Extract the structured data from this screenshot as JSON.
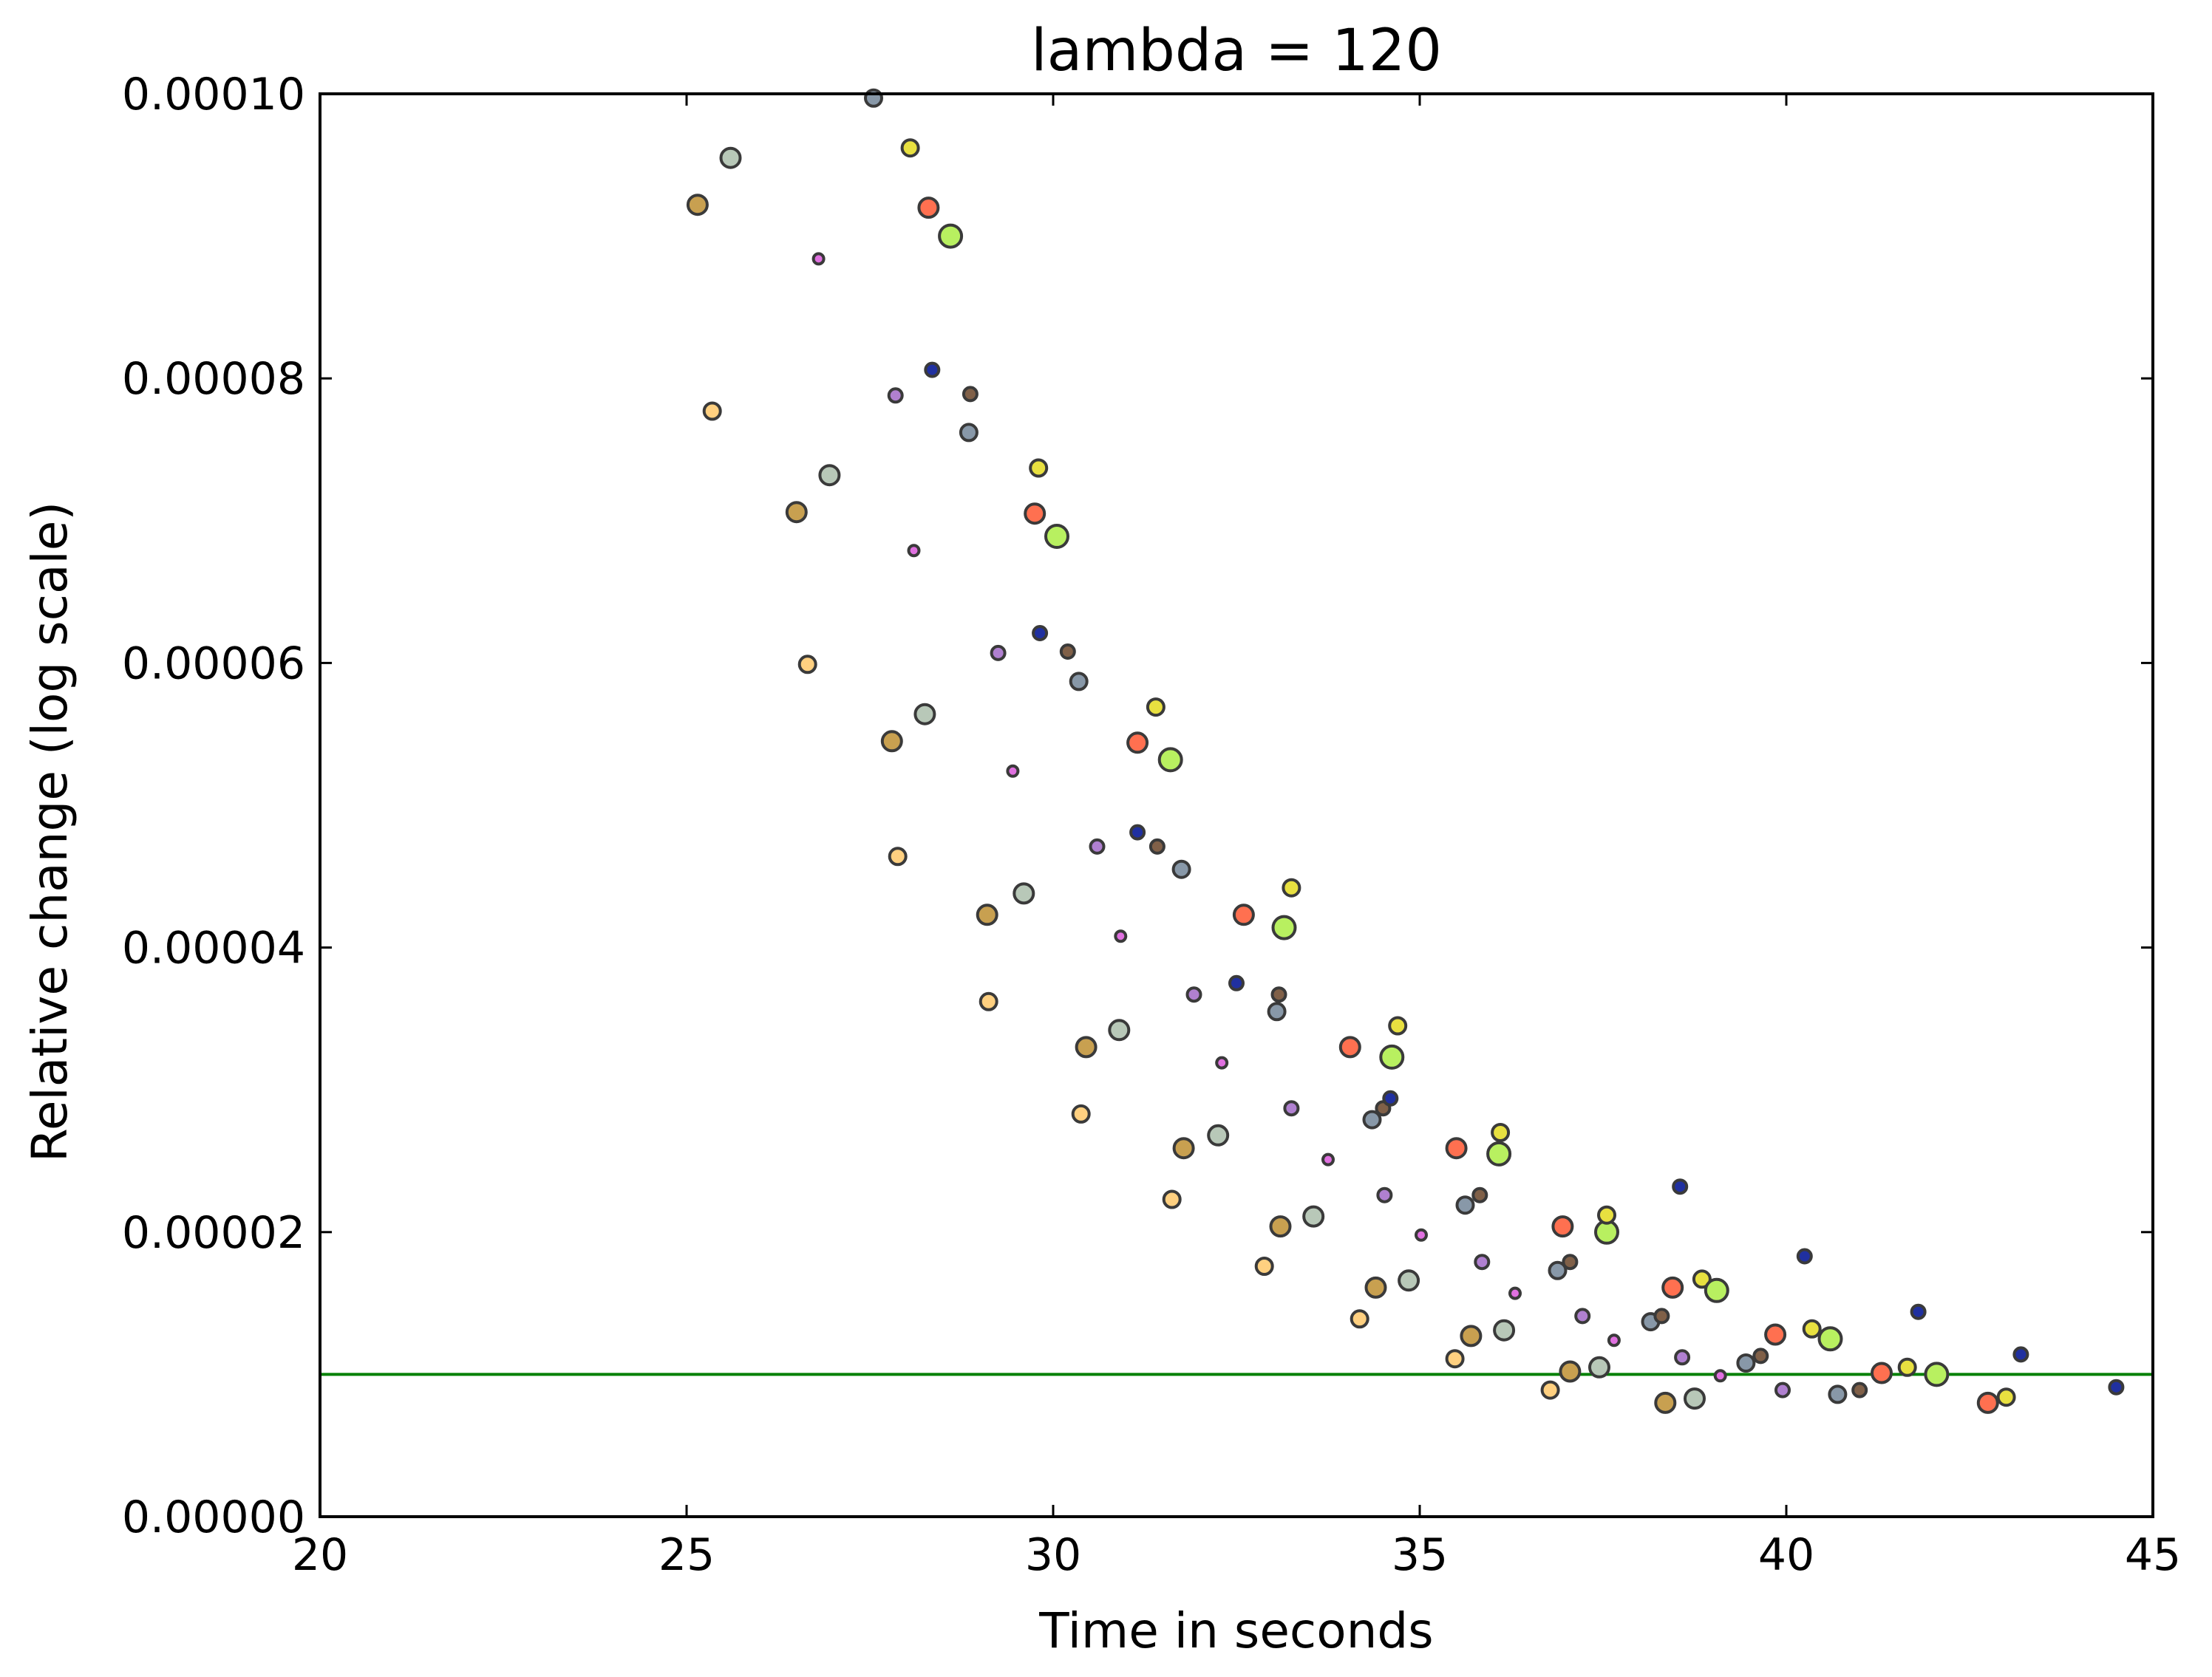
{
  "chart_data": {
    "type": "scatter",
    "title": "lambda = 120",
    "xlabel": "Time in seconds",
    "ylabel": "Relative change (log scale)",
    "xlim": [
      20,
      45
    ],
    "ylim": [
      0,
      0.0001
    ],
    "x_ticks": [
      "20",
      "25",
      "30",
      "35",
      "40",
      "45"
    ],
    "y_ticks": [
      "0.00000",
      "0.00002",
      "0.00004",
      "0.00006",
      "0.00008",
      "0.00010"
    ],
    "grid": false,
    "threshold_line": {
      "y": 1e-05,
      "color": "#008000"
    },
    "marker_edge_color": "#3a3a3a",
    "palette": {
      "tan": "#c8a050",
      "silver": "#b8c8b8",
      "light-orange": "#ffd080",
      "pink": "#e070e0",
      "grey-blue": "#8898a8",
      "yellow": "#e8e040",
      "salmon": "#ff7050",
      "lime": "#b8f060",
      "navy": "#2030a0",
      "lavender": "#b080d0",
      "brown": "#806048"
    },
    "points": [
      {
        "x": 25.15,
        "y": 9.22e-05,
        "color": "tan",
        "size": "large"
      },
      {
        "x": 25.35,
        "y": 7.77e-05,
        "color": "light-orange",
        "size": "medium"
      },
      {
        "x": 25.6,
        "y": 9.55e-05,
        "color": "silver",
        "size": "large"
      },
      {
        "x": 26.5,
        "y": 7.06e-05,
        "color": "tan",
        "size": "large"
      },
      {
        "x": 26.65,
        "y": 5.99e-05,
        "color": "light-orange",
        "size": "medium"
      },
      {
        "x": 26.8,
        "y": 8.84e-05,
        "color": "pink",
        "size": "tiny"
      },
      {
        "x": 26.95,
        "y": 7.32e-05,
        "color": "silver",
        "size": "large"
      },
      {
        "x": 27.55,
        "y": 9.97e-05,
        "color": "grey-blue",
        "size": "medium"
      },
      {
        "x": 27.8,
        "y": 5.45e-05,
        "color": "tan",
        "size": "large"
      },
      {
        "x": 27.85,
        "y": 7.88e-05,
        "color": "lavender",
        "size": "small"
      },
      {
        "x": 27.88,
        "y": 4.64e-05,
        "color": "light-orange",
        "size": "medium"
      },
      {
        "x": 28.05,
        "y": 9.62e-05,
        "color": "yellow",
        "size": "medium"
      },
      {
        "x": 28.1,
        "y": 6.79e-05,
        "color": "pink",
        "size": "tiny"
      },
      {
        "x": 28.25,
        "y": 5.64e-05,
        "color": "silver",
        "size": "large"
      },
      {
        "x": 28.3,
        "y": 9.2e-05,
        "color": "salmon",
        "size": "large"
      },
      {
        "x": 28.35,
        "y": 8.06e-05,
        "color": "navy",
        "size": "small"
      },
      {
        "x": 28.6,
        "y": 9e-05,
        "color": "lime",
        "size": "xlarge"
      },
      {
        "x": 28.85,
        "y": 7.62e-05,
        "color": "grey-blue",
        "size": "medium"
      },
      {
        "x": 28.87,
        "y": 7.89e-05,
        "color": "brown",
        "size": "small"
      },
      {
        "x": 29.1,
        "y": 4.23e-05,
        "color": "tan",
        "size": "large"
      },
      {
        "x": 29.12,
        "y": 3.62e-05,
        "color": "light-orange",
        "size": "medium"
      },
      {
        "x": 29.25,
        "y": 6.07e-05,
        "color": "lavender",
        "size": "small"
      },
      {
        "x": 29.45,
        "y": 5.24e-05,
        "color": "pink",
        "size": "tiny"
      },
      {
        "x": 29.6,
        "y": 4.38e-05,
        "color": "silver",
        "size": "large"
      },
      {
        "x": 29.75,
        "y": 7.05e-05,
        "color": "salmon",
        "size": "large"
      },
      {
        "x": 29.8,
        "y": 7.37e-05,
        "color": "yellow",
        "size": "medium"
      },
      {
        "x": 29.82,
        "y": 6.21e-05,
        "color": "navy",
        "size": "small"
      },
      {
        "x": 30.05,
        "y": 6.89e-05,
        "color": "lime",
        "size": "xlarge"
      },
      {
        "x": 30.2,
        "y": 6.08e-05,
        "color": "brown",
        "size": "small"
      },
      {
        "x": 30.35,
        "y": 5.87e-05,
        "color": "grey-blue",
        "size": "medium"
      },
      {
        "x": 30.38,
        "y": 2.83e-05,
        "color": "light-orange",
        "size": "medium"
      },
      {
        "x": 30.45,
        "y": 3.3e-05,
        "color": "tan",
        "size": "large"
      },
      {
        "x": 30.6,
        "y": 4.71e-05,
        "color": "lavender",
        "size": "small"
      },
      {
        "x": 30.9,
        "y": 3.42e-05,
        "color": "silver",
        "size": "large"
      },
      {
        "x": 30.92,
        "y": 4.08e-05,
        "color": "pink",
        "size": "tiny"
      },
      {
        "x": 31.15,
        "y": 4.81e-05,
        "color": "navy",
        "size": "small"
      },
      {
        "x": 31.15,
        "y": 5.44e-05,
        "color": "salmon",
        "size": "large"
      },
      {
        "x": 31.4,
        "y": 5.69e-05,
        "color": "yellow",
        "size": "medium"
      },
      {
        "x": 31.42,
        "y": 4.71e-05,
        "color": "brown",
        "size": "small"
      },
      {
        "x": 31.6,
        "y": 5.32e-05,
        "color": "lime",
        "size": "xlarge"
      },
      {
        "x": 31.62,
        "y": 2.23e-05,
        "color": "light-orange",
        "size": "medium"
      },
      {
        "x": 31.75,
        "y": 4.55e-05,
        "color": "grey-blue",
        "size": "medium"
      },
      {
        "x": 31.78,
        "y": 2.59e-05,
        "color": "tan",
        "size": "large"
      },
      {
        "x": 31.92,
        "y": 3.67e-05,
        "color": "lavender",
        "size": "small"
      },
      {
        "x": 32.25,
        "y": 2.68e-05,
        "color": "silver",
        "size": "large"
      },
      {
        "x": 32.3,
        "y": 3.19e-05,
        "color": "pink",
        "size": "tiny"
      },
      {
        "x": 32.5,
        "y": 3.75e-05,
        "color": "navy",
        "size": "small"
      },
      {
        "x": 32.6,
        "y": 4.23e-05,
        "color": "salmon",
        "size": "large"
      },
      {
        "x": 32.88,
        "y": 1.76e-05,
        "color": "light-orange",
        "size": "medium"
      },
      {
        "x": 33.05,
        "y": 3.55e-05,
        "color": "grey-blue",
        "size": "medium"
      },
      {
        "x": 33.08,
        "y": 3.67e-05,
        "color": "brown",
        "size": "small"
      },
      {
        "x": 33.1,
        "y": 2.04e-05,
        "color": "tan",
        "size": "large"
      },
      {
        "x": 33.15,
        "y": 4.14e-05,
        "color": "lime",
        "size": "xlarge"
      },
      {
        "x": 33.25,
        "y": 4.42e-05,
        "color": "yellow",
        "size": "medium"
      },
      {
        "x": 33.25,
        "y": 2.87e-05,
        "color": "lavender",
        "size": "small"
      },
      {
        "x": 33.55,
        "y": 2.11e-05,
        "color": "silver",
        "size": "large"
      },
      {
        "x": 33.75,
        "y": 2.51e-05,
        "color": "pink",
        "size": "tiny"
      },
      {
        "x": 34.05,
        "y": 3.3e-05,
        "color": "salmon",
        "size": "large"
      },
      {
        "x": 34.18,
        "y": 1.39e-05,
        "color": "light-orange",
        "size": "medium"
      },
      {
        "x": 34.35,
        "y": 2.79e-05,
        "color": "grey-blue",
        "size": "medium"
      },
      {
        "x": 34.4,
        "y": 1.61e-05,
        "color": "tan",
        "size": "large"
      },
      {
        "x": 34.5,
        "y": 2.87e-05,
        "color": "brown",
        "size": "small"
      },
      {
        "x": 34.52,
        "y": 2.26e-05,
        "color": "lavender",
        "size": "small"
      },
      {
        "x": 34.6,
        "y": 2.94e-05,
        "color": "navy",
        "size": "small"
      },
      {
        "x": 34.62,
        "y": 3.23e-05,
        "color": "lime",
        "size": "xlarge"
      },
      {
        "x": 34.7,
        "y": 3.45e-05,
        "color": "yellow",
        "size": "medium"
      },
      {
        "x": 34.85,
        "y": 1.66e-05,
        "color": "silver",
        "size": "large"
      },
      {
        "x": 35.02,
        "y": 1.98e-05,
        "color": "pink",
        "size": "tiny"
      },
      {
        "x": 35.48,
        "y": 1.11e-05,
        "color": "light-orange",
        "size": "medium"
      },
      {
        "x": 35.5,
        "y": 2.59e-05,
        "color": "salmon",
        "size": "large"
      },
      {
        "x": 35.62,
        "y": 2.19e-05,
        "color": "grey-blue",
        "size": "medium"
      },
      {
        "x": 35.7,
        "y": 1.27e-05,
        "color": "tan",
        "size": "large"
      },
      {
        "x": 35.82,
        "y": 2.26e-05,
        "color": "brown",
        "size": "small"
      },
      {
        "x": 35.85,
        "y": 1.79e-05,
        "color": "lavender",
        "size": "small"
      },
      {
        "x": 36.08,
        "y": 2.55e-05,
        "color": "lime",
        "size": "xlarge"
      },
      {
        "x": 36.1,
        "y": 2.7e-05,
        "color": "yellow",
        "size": "medium"
      },
      {
        "x": 36.15,
        "y": 1.31e-05,
        "color": "silver",
        "size": "large"
      },
      {
        "x": 36.3,
        "y": 1.57e-05,
        "color": "pink",
        "size": "tiny"
      },
      {
        "x": 36.78,
        "y": 8.9e-06,
        "color": "light-orange",
        "size": "medium"
      },
      {
        "x": 36.88,
        "y": 1.73e-05,
        "color": "grey-blue",
        "size": "medium"
      },
      {
        "x": 36.95,
        "y": 2.04e-05,
        "color": "salmon",
        "size": "large"
      },
      {
        "x": 37.05,
        "y": 1.02e-05,
        "color": "tan",
        "size": "large"
      },
      {
        "x": 37.05,
        "y": 1.79e-05,
        "color": "brown",
        "size": "small"
      },
      {
        "x": 37.22,
        "y": 1.41e-05,
        "color": "lavender",
        "size": "small"
      },
      {
        "x": 37.45,
        "y": 1.05e-05,
        "color": "silver",
        "size": "large"
      },
      {
        "x": 37.55,
        "y": 2e-05,
        "color": "lime",
        "size": "xlarge"
      },
      {
        "x": 37.55,
        "y": 2.12e-05,
        "color": "yellow",
        "size": "medium"
      },
      {
        "x": 37.65,
        "y": 1.24e-05,
        "color": "pink",
        "size": "tiny"
      },
      {
        "x": 38.15,
        "y": 1.37e-05,
        "color": "grey-blue",
        "size": "medium"
      },
      {
        "x": 38.3,
        "y": 1.41e-05,
        "color": "brown",
        "size": "small"
      },
      {
        "x": 38.35,
        "y": 8e-06,
        "color": "tan",
        "size": "large"
      },
      {
        "x": 38.45,
        "y": 1.61e-05,
        "color": "salmon",
        "size": "large"
      },
      {
        "x": 38.55,
        "y": 2.32e-05,
        "color": "navy",
        "size": "small"
      },
      {
        "x": 38.58,
        "y": 1.12e-05,
        "color": "lavender",
        "size": "small"
      },
      {
        "x": 38.75,
        "y": 8.3e-06,
        "color": "silver",
        "size": "large"
      },
      {
        "x": 38.85,
        "y": 1.67e-05,
        "color": "yellow",
        "size": "medium"
      },
      {
        "x": 39.05,
        "y": 1.59e-05,
        "color": "lime",
        "size": "xlarge"
      },
      {
        "x": 39.1,
        "y": 9.9e-06,
        "color": "pink",
        "size": "tiny"
      },
      {
        "x": 39.45,
        "y": 1.08e-05,
        "color": "grey-blue",
        "size": "medium"
      },
      {
        "x": 39.65,
        "y": 1.13e-05,
        "color": "brown",
        "size": "small"
      },
      {
        "x": 39.85,
        "y": 1.28e-05,
        "color": "salmon",
        "size": "large"
      },
      {
        "x": 39.95,
        "y": 8.9e-06,
        "color": "lavender",
        "size": "small"
      },
      {
        "x": 40.25,
        "y": 1.83e-05,
        "color": "navy",
        "size": "small"
      },
      {
        "x": 40.35,
        "y": 1.32e-05,
        "color": "yellow",
        "size": "medium"
      },
      {
        "x": 40.6,
        "y": 1.25e-05,
        "color": "lime",
        "size": "xlarge"
      },
      {
        "x": 40.7,
        "y": 8.6e-06,
        "color": "grey-blue",
        "size": "medium"
      },
      {
        "x": 41.0,
        "y": 8.9e-06,
        "color": "brown",
        "size": "small"
      },
      {
        "x": 41.3,
        "y": 1.01e-05,
        "color": "salmon",
        "size": "large"
      },
      {
        "x": 41.65,
        "y": 1.05e-05,
        "color": "yellow",
        "size": "medium"
      },
      {
        "x": 41.8,
        "y": 1.44e-05,
        "color": "navy",
        "size": "small"
      },
      {
        "x": 42.05,
        "y": 1e-05,
        "color": "lime",
        "size": "xlarge"
      },
      {
        "x": 42.75,
        "y": 8e-06,
        "color": "salmon",
        "size": "large"
      },
      {
        "x": 43.0,
        "y": 8.4e-06,
        "color": "yellow",
        "size": "medium"
      },
      {
        "x": 43.2,
        "y": 1.14e-05,
        "color": "navy",
        "size": "small"
      },
      {
        "x": 44.5,
        "y": 9.1e-06,
        "color": "navy",
        "size": "small"
      }
    ]
  }
}
